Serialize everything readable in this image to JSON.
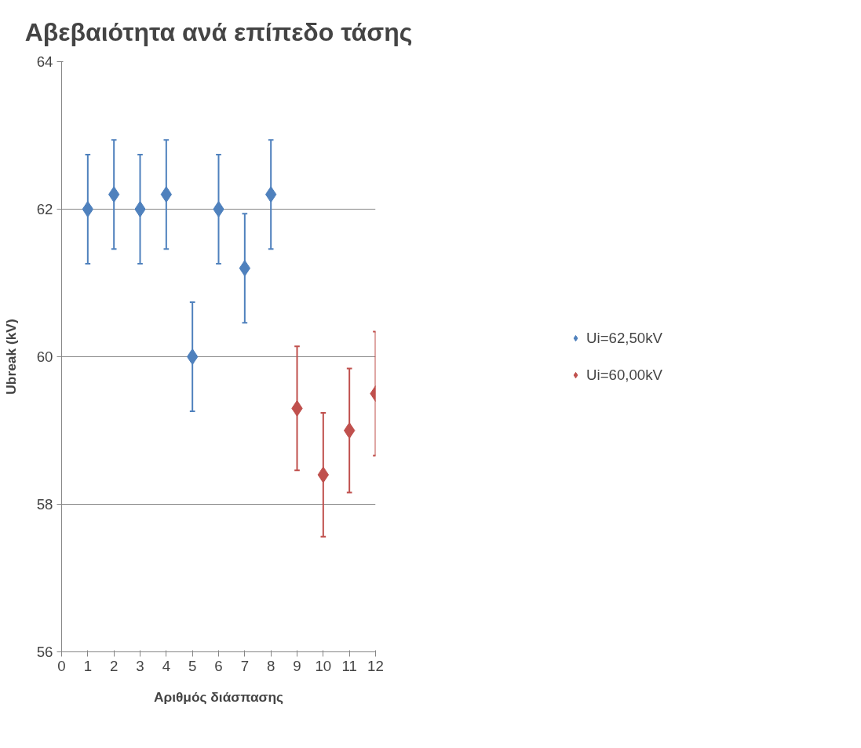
{
  "chart_data": {
    "type": "scatter",
    "title": "Αβεβαιότητα ανά επίπεδο τάσης",
    "xlabel": "Αριθμός διάσπασης",
    "ylabel": "Ubreak (kV)",
    "series": [
      {
        "name": "Ui=62,50kV",
        "color": "#4f81bd",
        "x": [
          1,
          2,
          3,
          4,
          5,
          6,
          7,
          8
        ],
        "values": [
          62,
          62.2,
          62,
          62.2,
          60,
          62,
          61.2,
          62.2
        ],
        "errors": [
          0.74,
          0.74,
          0.74,
          0.74,
          0.74,
          0.74,
          0.74,
          0.74
        ]
      },
      {
        "name": "Ui=60,00kV",
        "color": "#c0504d",
        "x": [
          9,
          10,
          11,
          12
        ],
        "values": [
          59.3,
          58.4,
          59,
          59.5
        ],
        "errors": [
          0.84,
          0.84,
          0.84,
          0.84
        ]
      }
    ],
    "xlim": [
      0,
      12
    ],
    "xticks": [
      0,
      1,
      2,
      3,
      4,
      5,
      6,
      7,
      8,
      9,
      10,
      11,
      12
    ],
    "ylim": [
      56,
      64
    ],
    "yticks": [
      56,
      58,
      60,
      62,
      64
    ],
    "grid": "y",
    "legend": "right",
    "marker": "diamond"
  }
}
